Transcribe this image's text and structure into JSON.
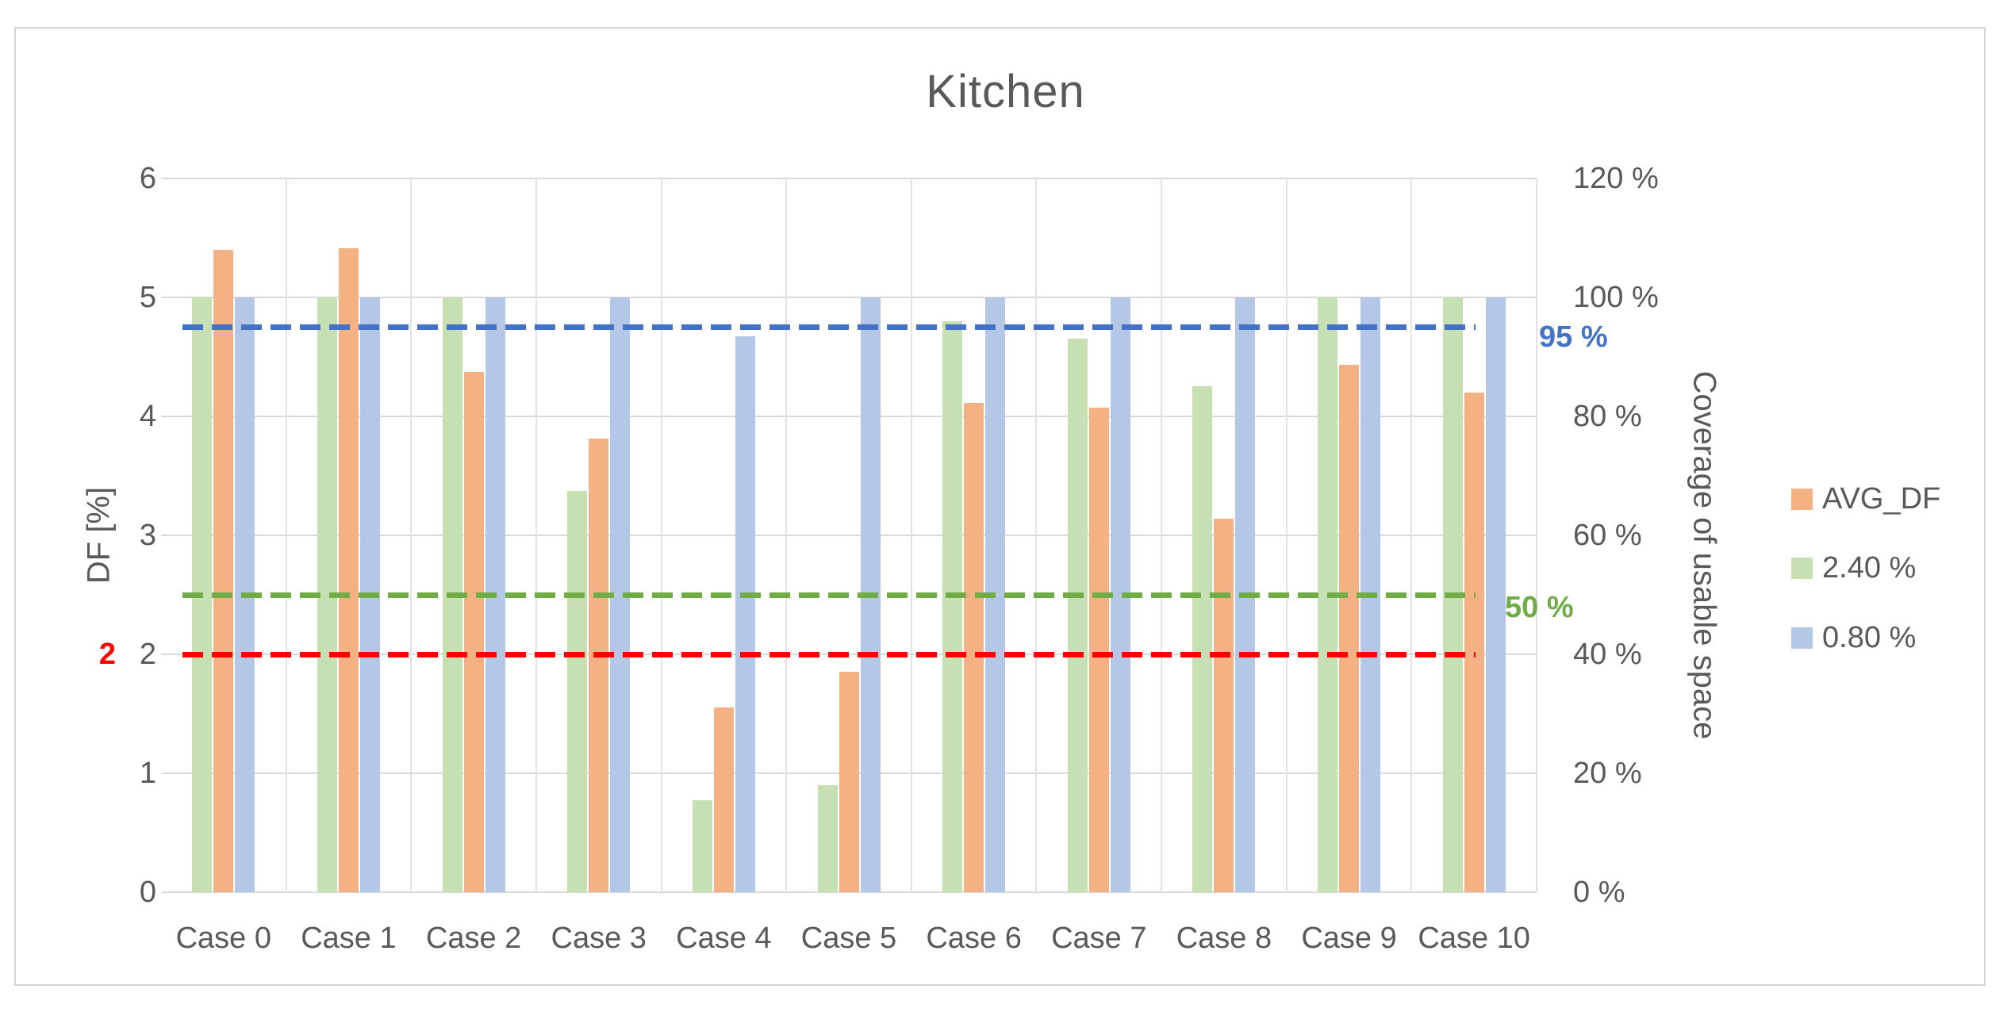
{
  "chart_data": {
    "type": "bar",
    "title": "Kitchen",
    "categories": [
      "Case 0",
      "Case 1",
      "Case 2",
      "Case 3",
      "Case 4",
      "Case 5",
      "Case 6",
      "Case 7",
      "Case 8",
      "Case 9",
      "Case 10"
    ],
    "series": [
      {
        "name": "AVG_DF",
        "axis": "left",
        "color": "#f4b183",
        "values": [
          5.4,
          5.41,
          4.37,
          3.81,
          1.55,
          1.85,
          4.11,
          4.07,
          3.14,
          4.43,
          4.2
        ]
      },
      {
        "name": "2.40 %",
        "axis": "right",
        "color": "#c6e0b4",
        "values": [
          100,
          100,
          100,
          67.5,
          15.5,
          18,
          96,
          93,
          85,
          100,
          100
        ]
      },
      {
        "name": "0.80 %",
        "axis": "right",
        "color": "#b4c7e7",
        "values": [
          100,
          100,
          100,
          100,
          93.5,
          100,
          100,
          100,
          100,
          100,
          100
        ]
      }
    ],
    "bar_order": [
      "2.40 %",
      "AVG_DF",
      "0.80 %"
    ],
    "left_axis": {
      "label": "DF [%]",
      "min": 0,
      "max": 6,
      "step": 1,
      "ticks": [
        "0",
        "1",
        "2",
        "3",
        "4",
        "5",
        "6"
      ]
    },
    "right_axis": {
      "label": "Coverage of usable space",
      "min": 0,
      "max": 120,
      "step": 20,
      "ticks": [
        "0 %",
        "20 %",
        "40 %",
        "60 %",
        "80 %",
        "100 %",
        "120 %"
      ]
    },
    "reference_lines": [
      {
        "label": "2",
        "value": 2,
        "axis": "left",
        "color": "#ff0000",
        "label_side": "left"
      },
      {
        "label": "50 %",
        "value": 50,
        "axis": "right",
        "color": "#70ad47",
        "label_side": "right"
      },
      {
        "label": "95 %",
        "value": 95,
        "axis": "right",
        "color": "#4472c4",
        "label_side": "right"
      }
    ],
    "legend": [
      {
        "label": "AVG_DF",
        "color": "#f4b183"
      },
      {
        "label": "2.40 %",
        "color": "#c6e0b4"
      },
      {
        "label": "0.80 %",
        "color": "#b4c7e7"
      }
    ],
    "grid": true,
    "legend_position": "right"
  },
  "colors": {
    "text": "#595959",
    "gridline": "#d9d9d9",
    "frame_border": "#d6d6d6"
  }
}
